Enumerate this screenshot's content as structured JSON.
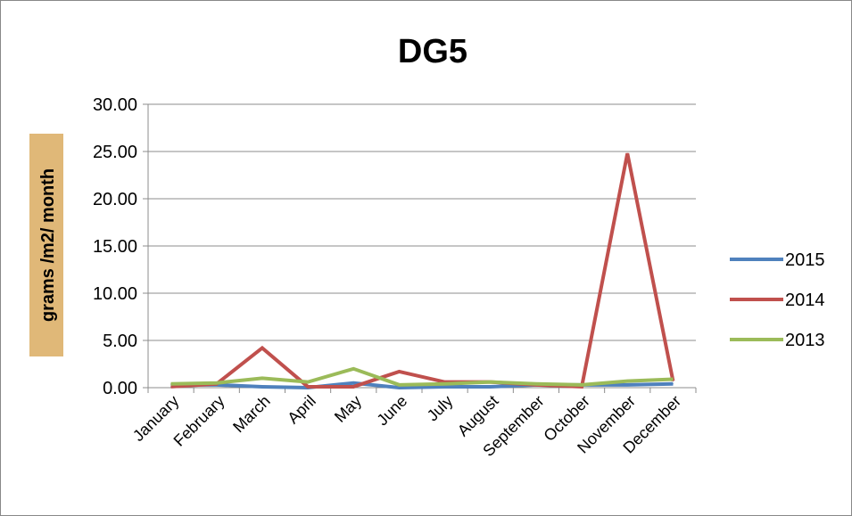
{
  "chart_data": {
    "type": "line",
    "title": "DG5",
    "ylabel": "grams /m2/ month",
    "xlabel": "",
    "categories": [
      "January",
      "February",
      "March",
      "April",
      "May",
      "June",
      "July",
      "August",
      "September",
      "October",
      "November",
      "December"
    ],
    "ylim": [
      0,
      30
    ],
    "yticks": [
      "0.00",
      "5.00",
      "10.00",
      "15.00",
      "20.00",
      "25.00",
      "30.00"
    ],
    "grid": true,
    "legend": "right",
    "series": [
      {
        "name": "2015",
        "color": "#4f81bd",
        "values": [
          0.3,
          0.3,
          0.1,
          0.0,
          0.5,
          0.0,
          0.1,
          0.1,
          0.3,
          0.3,
          0.3,
          0.4
        ]
      },
      {
        "name": "2014",
        "color": "#c0504d",
        "values": [
          0.1,
          0.4,
          4.2,
          0.1,
          0.1,
          1.7,
          0.6,
          0.6,
          0.3,
          0.1,
          24.8,
          0.7
        ]
      },
      {
        "name": "2013",
        "color": "#9bbb59",
        "values": [
          0.4,
          0.5,
          1.0,
          0.6,
          2.0,
          0.3,
          0.4,
          0.6,
          0.4,
          0.3,
          0.7,
          0.9
        ]
      }
    ]
  }
}
